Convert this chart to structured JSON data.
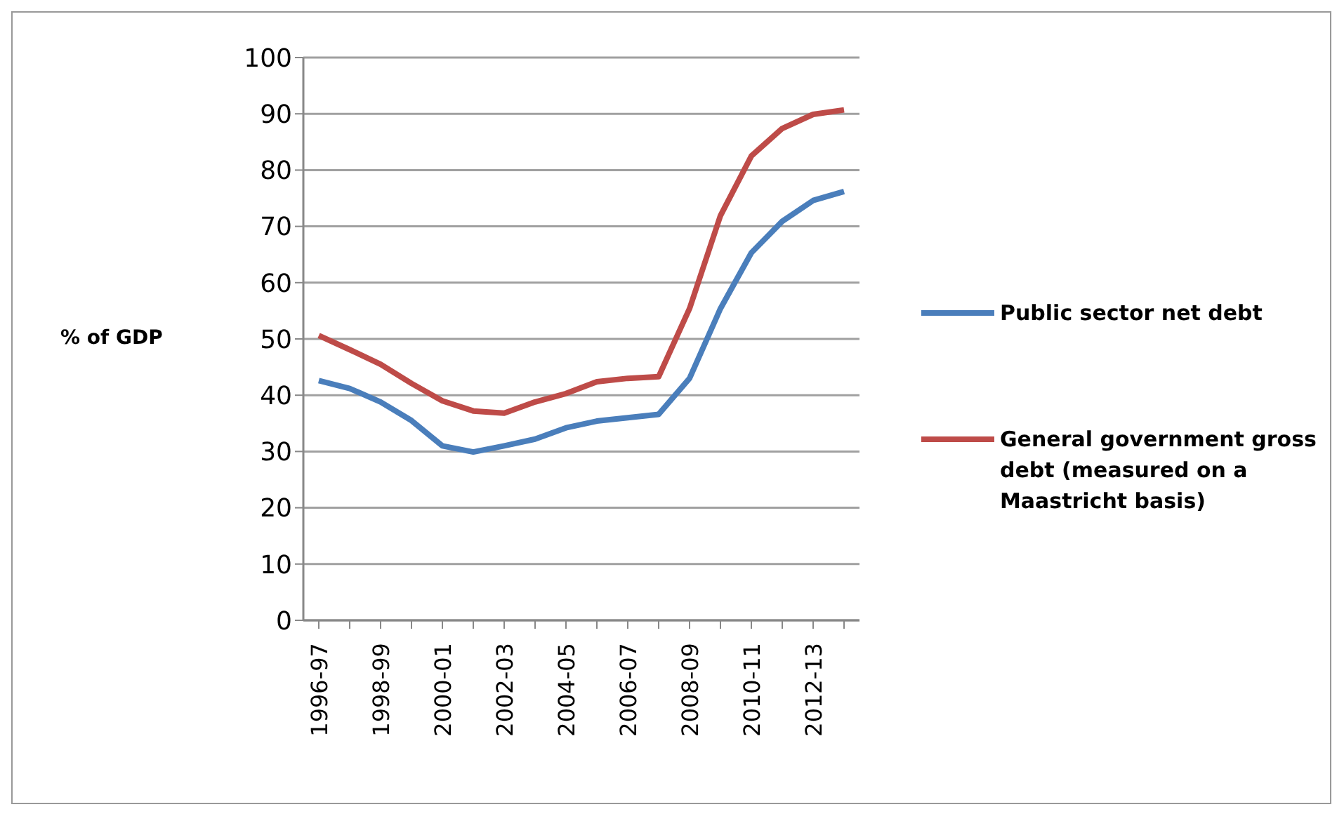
{
  "chart_data": {
    "type": "line",
    "ylabel": "% of GDP",
    "categories": [
      "1996-97",
      null,
      "1998-99",
      null,
      "2000-01",
      null,
      "2002-03",
      null,
      "2004-05",
      null,
      "2006-07",
      null,
      "2008-09",
      null,
      "2010-11",
      null,
      "2012-13",
      null
    ],
    "series": [
      {
        "name": "Public sector net debt",
        "color": "#4a7ebb",
        "values": [
          42.6,
          41.2,
          38.8,
          35.5,
          31,
          29.9,
          31,
          32.2,
          34.2,
          35.4,
          36,
          36.6,
          43,
          55.4,
          65.3,
          70.9,
          74.6,
          76.2
        ]
      },
      {
        "name": "General government gross debt (measured on a Maastricht basis)",
        "color": "#be4b48",
        "values": [
          50.6,
          48.1,
          45.5,
          42.1,
          39,
          37.2,
          36.8,
          38.8,
          40.3,
          42.4,
          43,
          43.3,
          55.4,
          71.9,
          82.5,
          87.4,
          89.9,
          90.7
        ]
      }
    ],
    "ylim": [
      0,
      100
    ],
    "yticks": [
      0,
      10,
      20,
      30,
      40,
      50,
      60,
      70,
      80,
      90,
      100
    ],
    "grid": "y",
    "legend": "right",
    "marker": "none",
    "line_style": "solid"
  }
}
